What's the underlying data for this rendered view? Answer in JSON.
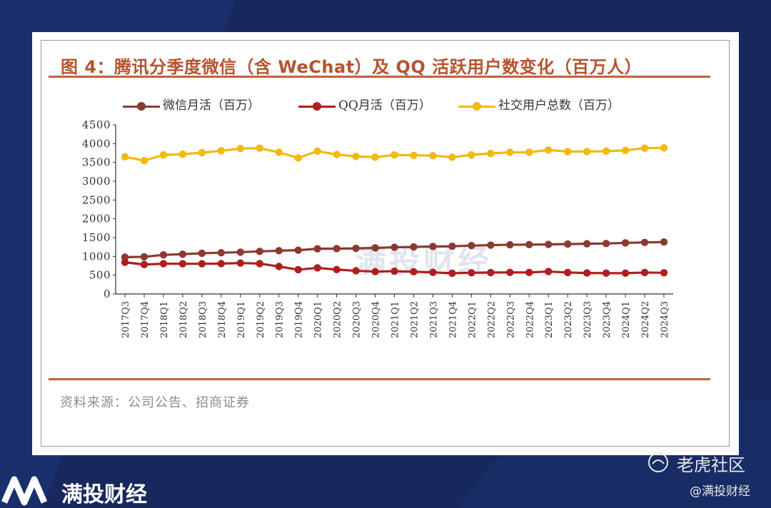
{
  "figure_title": "图 4：腾讯分季度微信（含 WeChat）及 QQ 活跃用户数变化（百万人）",
  "source": "资料来源：公司公告、招商证券",
  "watermark_center": "满投财经",
  "brand": "满投财经",
  "community": "老虎社区",
  "handle": "@满投财经",
  "colors": {
    "background": "#17295c",
    "title": "#b5532f",
    "rule": "#c6613e"
  },
  "chart_data": {
    "type": "line",
    "title": "",
    "xlabel": "",
    "ylabel": "",
    "ylim": [
      0,
      4500
    ],
    "yticks": [
      0,
      500,
      1000,
      1500,
      2000,
      2500,
      3000,
      3500,
      4000,
      4500
    ],
    "ytick_labels": [
      "0",
      "500",
      "1000",
      "1500",
      "2000",
      "2500",
      "3000",
      "3500",
      "4000",
      "4500"
    ],
    "legend_position": "top",
    "grid": false,
    "categories": [
      "2017Q3",
      "2017Q4",
      "2018Q1",
      "2018Q2",
      "2018Q3",
      "2018Q4",
      "2019Q1",
      "2019Q2",
      "2019Q3",
      "2019Q4",
      "2020Q1",
      "2020Q2",
      "2020Q3",
      "2020Q4",
      "2021Q1",
      "2021Q2",
      "2021Q3",
      "2021Q4",
      "2022Q1",
      "2022Q2",
      "2022Q3",
      "2022Q4",
      "2023Q1",
      "2023Q2",
      "2023Q3",
      "2023Q4",
      "2024Q1",
      "2024Q2",
      "2024Q3"
    ],
    "series": [
      {
        "name": "微信月活（百万）",
        "color": "#8b3a32",
        "values": [
          980,
          989,
          1040,
          1058,
          1083,
          1098,
          1112,
          1133,
          1151,
          1165,
          1203,
          1206,
          1213,
          1225,
          1242,
          1251,
          1263,
          1268,
          1288,
          1299,
          1309,
          1313,
          1319,
          1327,
          1336,
          1343,
          1359,
          1371,
          1382
        ]
      },
      {
        "name": "QQ月活（百万）",
        "color": "#b01e1e",
        "values": [
          843,
          783,
          805,
          803,
          803,
          807,
          823,
          808,
          731,
          647,
          694,
          648,
          617,
          595,
          606,
          591,
          574,
          552,
          564,
          569,
          574,
          572,
          597,
          571,
          558,
          554,
          553,
          571,
          564
        ]
      },
      {
        "name": "社交用户总数（百万）",
        "color": "#f2b90f",
        "values": [
          3650,
          3550,
          3700,
          3720,
          3760,
          3810,
          3870,
          3880,
          3770,
          3620,
          3800,
          3710,
          3660,
          3640,
          3700,
          3690,
          3680,
          3640,
          3700,
          3740,
          3770,
          3770,
          3830,
          3790,
          3790,
          3800,
          3820,
          3880,
          3890
        ]
      }
    ]
  }
}
